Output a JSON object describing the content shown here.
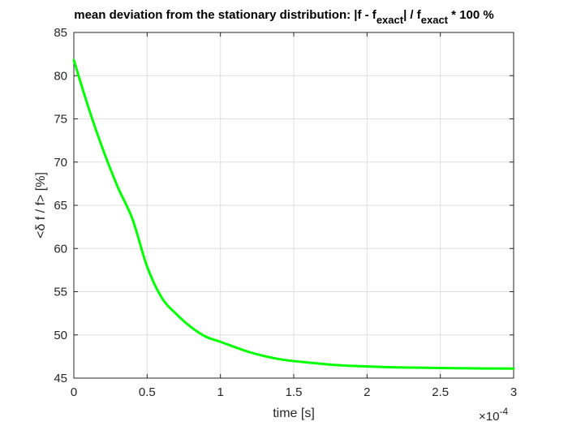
{
  "chart_data": {
    "type": "line",
    "title": {
      "part1": "mean deviation from the stationary distribution: |f - f",
      "sub1": "exact",
      "part2": "| / f",
      "sub2": "exact",
      "part3": " * 100 %"
    },
    "xlabel": "time [s]",
    "ylabel": "<δ f / f> [%]",
    "x_exponent": {
      "base": "×10",
      "power": "-4"
    },
    "xlim": [
      0,
      3
    ],
    "ylim": [
      45,
      85
    ],
    "x_ticks": [
      0,
      0.5,
      1,
      1.5,
      2,
      2.5,
      3
    ],
    "x_tick_labels": [
      "0",
      "0.5",
      "1",
      "1.5",
      "2",
      "2.5",
      "3"
    ],
    "y_ticks": [
      45,
      50,
      55,
      60,
      65,
      70,
      75,
      80,
      85
    ],
    "y_tick_labels": [
      "45",
      "50",
      "55",
      "60",
      "65",
      "70",
      "75",
      "80",
      "85"
    ],
    "grid": true,
    "line_color": "#00ff00",
    "series": [
      {
        "x": [
          0,
          0.1,
          0.2,
          0.3,
          0.4,
          0.5,
          0.6,
          0.7,
          0.8,
          0.9,
          1.0,
          1.2,
          1.4,
          1.6,
          1.8,
          2.0,
          2.2,
          2.4,
          2.6,
          2.8,
          3.0
        ],
        "values": [
          81.8,
          76.3,
          71.4,
          67.1,
          63.4,
          57.9,
          54.3,
          52.4,
          50.9,
          49.8,
          49.2,
          48.0,
          47.2,
          46.8,
          46.5,
          46.35,
          46.25,
          46.2,
          46.15,
          46.12,
          46.1
        ]
      }
    ]
  }
}
